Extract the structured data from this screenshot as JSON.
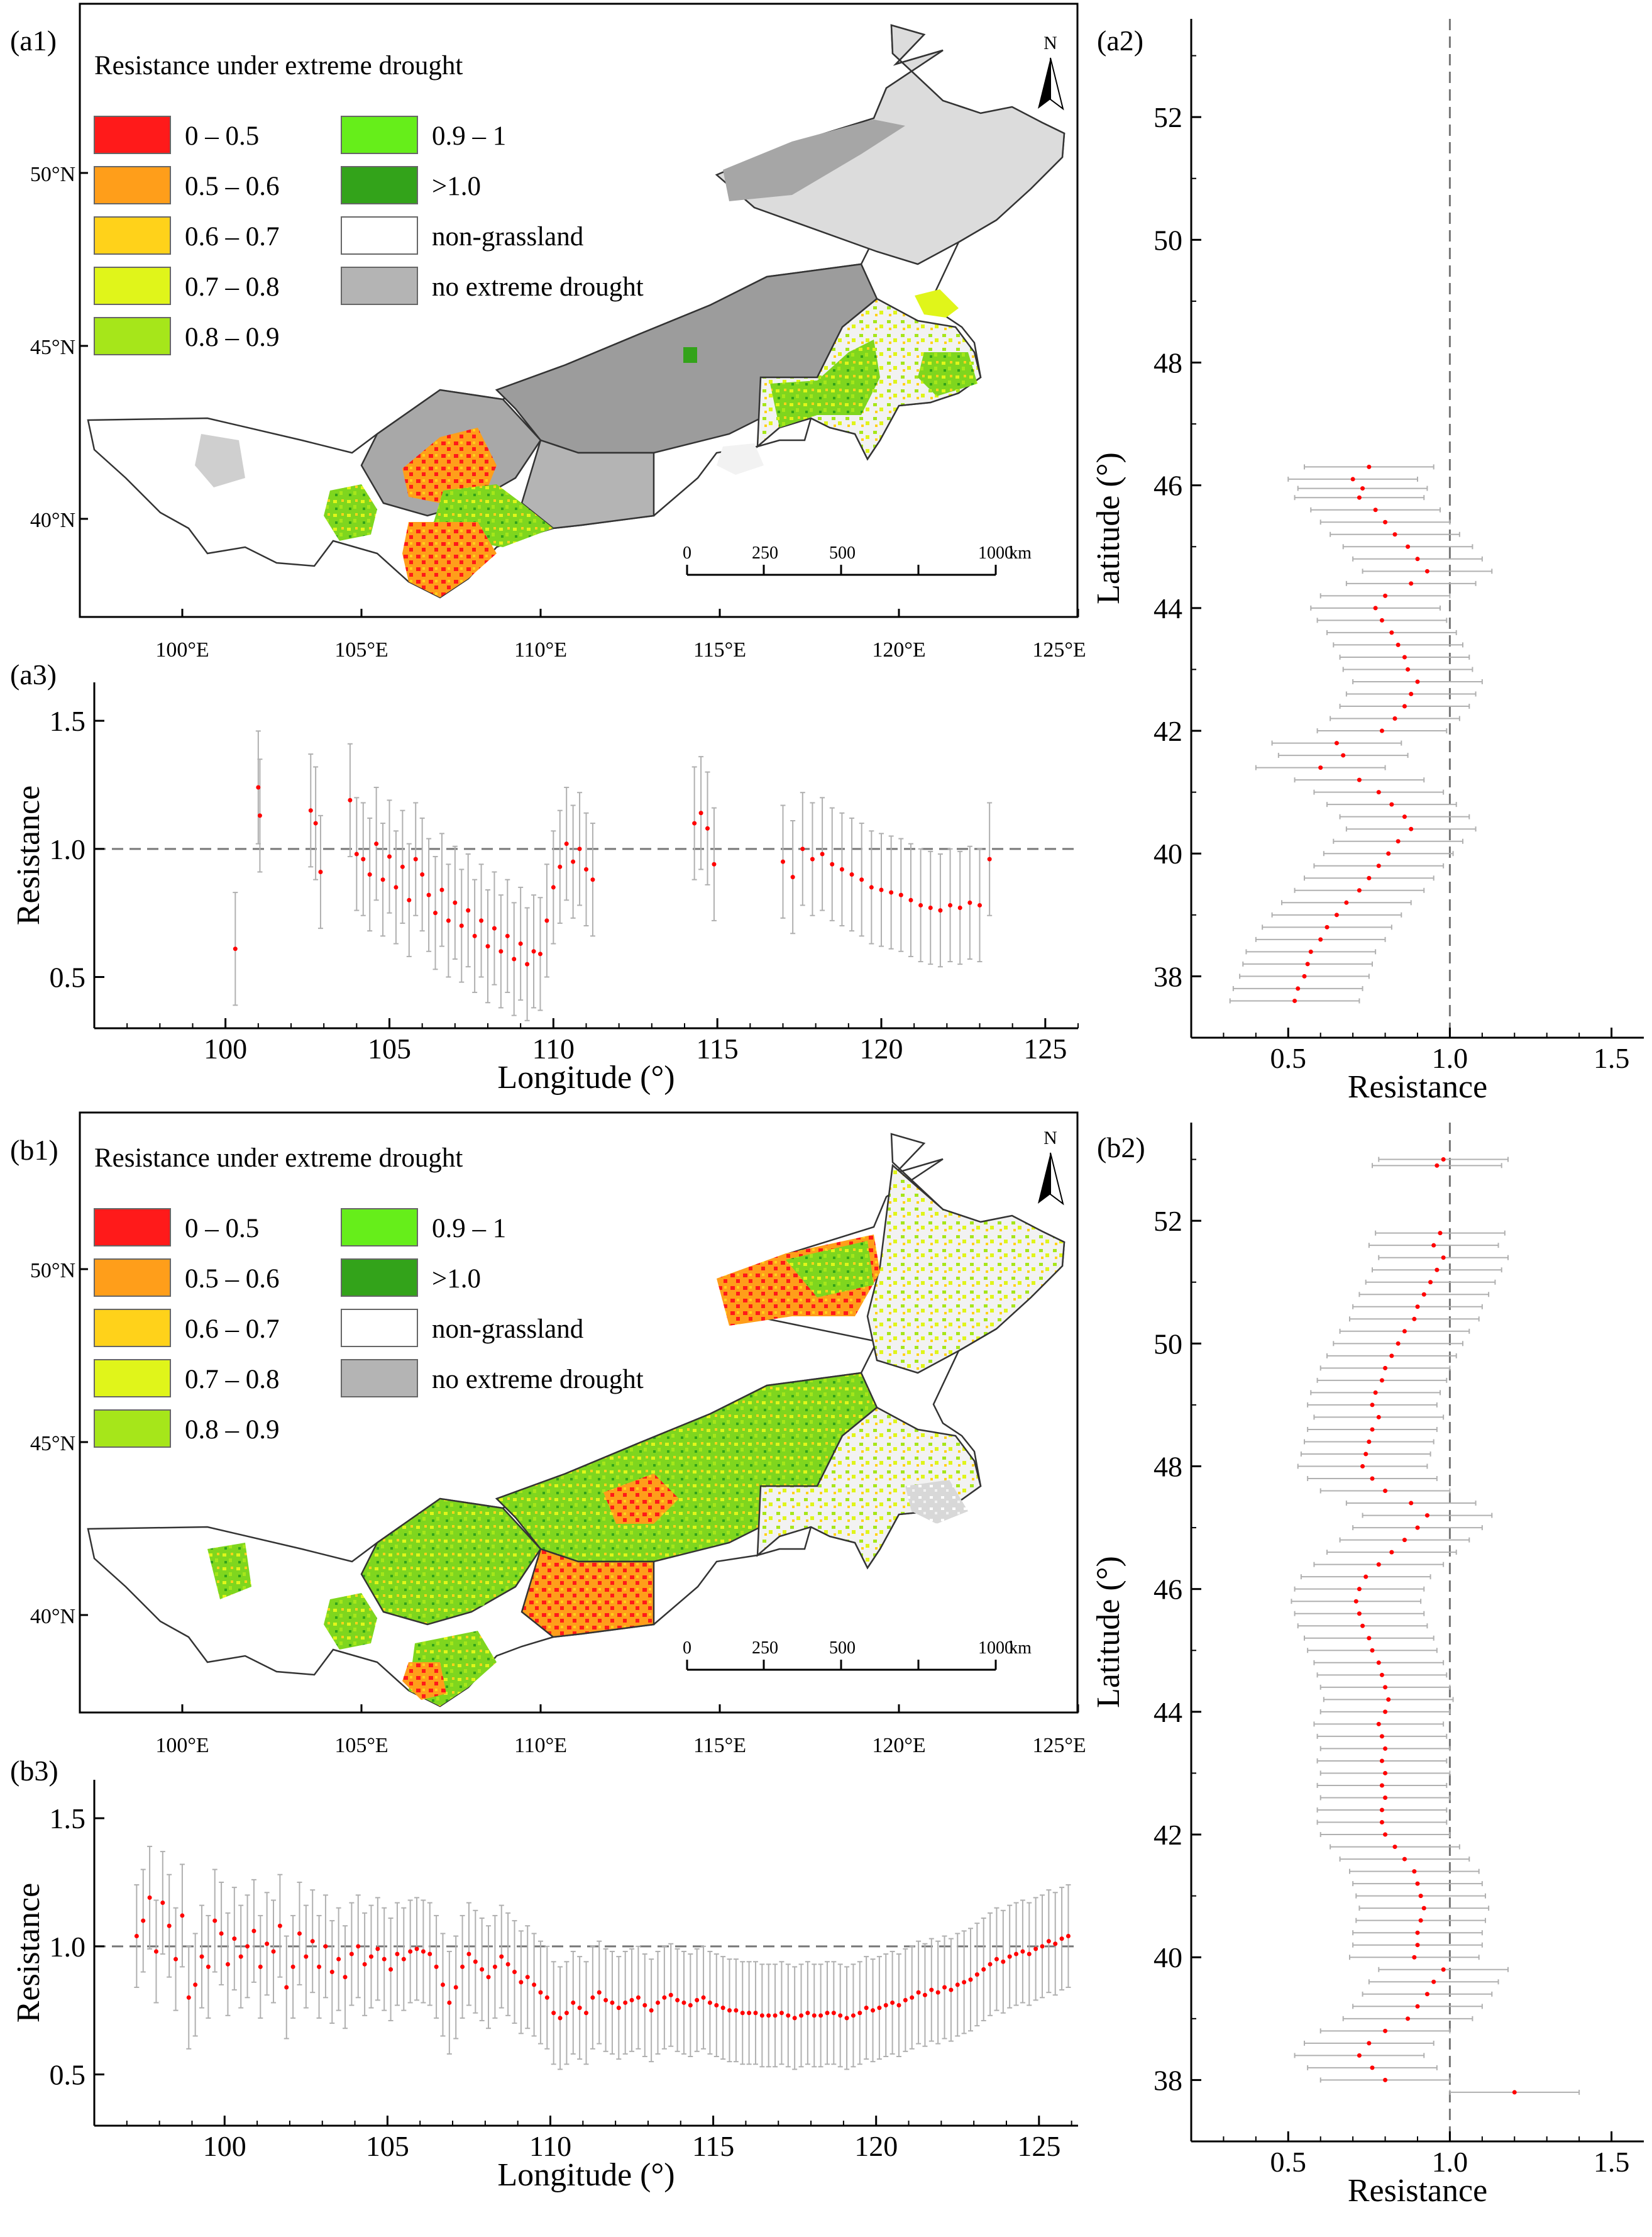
{
  "colors": {
    "c_0_05": "#ff1a1a",
    "c_05_06": "#ff9e1a",
    "c_06_07": "#ffd21a",
    "c_07_08": "#e0f51a",
    "c_08_09": "#a6e61a",
    "c_09_1": "#66ee1a",
    "c_gt1": "#33a31a",
    "nongrass": "#ffffff",
    "nodrought": "#b4b4b4",
    "point": "#ff0000",
    "errorbar": "#b0b0b0"
  },
  "legend": {
    "title": "Resistance under extreme drought",
    "items": [
      "0 – 0.5",
      "0.5 – 0.6",
      "0.6 – 0.7",
      "0.7 – 0.8",
      "0.8 – 0.9",
      "0.9 – 1",
      ">1.0",
      "non-grassland",
      "no extreme drought"
    ]
  },
  "maps": {
    "lon_ticks": [
      "100°E",
      "105°E",
      "110°E",
      "115°E",
      "120°E",
      "125°E"
    ],
    "lat_ticks": [
      "50°N",
      "45°N",
      "40°N"
    ],
    "north": "N",
    "scalebar": [
      "0",
      "250",
      "500",
      "1000"
    ],
    "scale_unit": "km"
  },
  "panel_labels": {
    "a1": "(a1)",
    "a2": "(a2)",
    "a3": "(a3)",
    "b1": "(b1)",
    "b2": "(b2)",
    "b3": "(b3)"
  },
  "chart_data": [
    {
      "id": "a3",
      "type": "scatter",
      "title": "",
      "xlabel": "Longitude (°)",
      "ylabel": "Resistance",
      "xlim": [
        96,
        126
      ],
      "ylim": [
        0.3,
        1.65
      ],
      "xticks": [
        100,
        105,
        110,
        115,
        120,
        125
      ],
      "yticks": [
        0.5,
        1.0,
        1.5
      ],
      "reference_line": 1.0,
      "error": 0.22,
      "x": [
        100.3,
        101.0,
        101.05,
        102.6,
        102.75,
        102.9,
        103.8,
        104.0,
        104.2,
        104.4,
        104.6,
        104.8,
        105.0,
        105.2,
        105.4,
        105.6,
        105.8,
        106.0,
        106.2,
        106.4,
        106.6,
        106.8,
        107.0,
        107.2,
        107.4,
        107.6,
        107.8,
        108.0,
        108.2,
        108.4,
        108.6,
        108.8,
        109.0,
        109.2,
        109.4,
        109.6,
        109.8,
        110.0,
        110.2,
        110.4,
        110.6,
        110.8,
        111.0,
        111.2,
        114.3,
        114.5,
        114.7,
        114.9,
        117.0,
        117.3,
        117.6,
        117.9,
        118.2,
        118.5,
        118.8,
        119.1,
        119.4,
        119.7,
        120.0,
        120.3,
        120.6,
        120.9,
        121.2,
        121.5,
        121.8,
        122.1,
        122.4,
        122.7,
        123.0,
        123.3
      ],
      "values": [
        0.61,
        1.24,
        1.13,
        1.15,
        1.1,
        0.91,
        1.19,
        0.98,
        0.96,
        0.9,
        1.02,
        0.88,
        0.97,
        0.85,
        0.93,
        0.8,
        0.96,
        0.9,
        0.82,
        0.75,
        0.84,
        0.72,
        0.79,
        0.7,
        0.76,
        0.66,
        0.72,
        0.62,
        0.69,
        0.6,
        0.66,
        0.57,
        0.63,
        0.55,
        0.6,
        0.59,
        0.72,
        0.85,
        0.93,
        1.02,
        0.95,
        1.0,
        0.92,
        0.88,
        1.1,
        1.14,
        1.08,
        0.94,
        0.95,
        0.89,
        1.0,
        0.96,
        0.98,
        0.94,
        0.92,
        0.9,
        0.88,
        0.85,
        0.84,
        0.83,
        0.82,
        0.8,
        0.78,
        0.77,
        0.76,
        0.78,
        0.77,
        0.79,
        0.78,
        0.96
      ]
    },
    {
      "id": "a2",
      "type": "scatter",
      "title": "",
      "xlabel": "Resistance",
      "ylabel": "Latitude (°)",
      "xlim": [
        0.2,
        1.6
      ],
      "ylim": [
        37.0,
        53.6
      ],
      "xticks": [
        0.5,
        1.0,
        1.5
      ],
      "yticks": [
        38,
        40,
        42,
        44,
        46,
        48,
        50,
        52
      ],
      "reference_line": 1.0,
      "error": 0.2,
      "y": [
        46.3,
        46.1,
        45.95,
        45.8,
        45.6,
        45.4,
        45.2,
        45.0,
        44.8,
        44.6,
        44.4,
        44.2,
        44.0,
        43.8,
        43.6,
        43.4,
        43.2,
        43.0,
        42.8,
        42.6,
        42.4,
        42.2,
        42.0,
        41.8,
        41.6,
        41.4,
        41.2,
        41.0,
        40.8,
        40.6,
        40.4,
        40.2,
        40.0,
        39.8,
        39.6,
        39.4,
        39.2,
        39.0,
        38.8,
        38.6,
        38.4,
        38.2,
        38.0,
        37.8,
        37.6
      ],
      "values": [
        0.75,
        0.7,
        0.73,
        0.72,
        0.77,
        0.8,
        0.83,
        0.87,
        0.9,
        0.93,
        0.88,
        0.8,
        0.77,
        0.79,
        0.82,
        0.84,
        0.86,
        0.87,
        0.9,
        0.88,
        0.86,
        0.83,
        0.79,
        0.65,
        0.67,
        0.6,
        0.72,
        0.78,
        0.82,
        0.86,
        0.88,
        0.84,
        0.81,
        0.78,
        0.75,
        0.72,
        0.68,
        0.65,
        0.62,
        0.6,
        0.57,
        0.56,
        0.55,
        0.53,
        0.52
      ]
    },
    {
      "id": "b3",
      "type": "scatter",
      "title": "",
      "xlabel": "Longitude (°)",
      "ylabel": "Resistance",
      "xlim": [
        96,
        126.2
      ],
      "ylim": [
        0.3,
        1.65
      ],
      "xticks": [
        100,
        105,
        110,
        115,
        120,
        125
      ],
      "yticks": [
        0.5,
        1.0,
        1.5
      ],
      "reference_line": 1.0,
      "error": 0.2,
      "x": [
        97.3,
        97.5,
        97.7,
        97.9,
        98.1,
        98.3,
        98.5,
        98.7,
        98.9,
        99.1,
        99.3,
        99.5,
        99.7,
        99.9,
        100.1,
        100.3,
        100.5,
        100.7,
        100.9,
        101.1,
        101.3,
        101.5,
        101.7,
        101.9,
        102.1,
        102.3,
        102.5,
        102.7,
        102.9,
        103.1,
        103.3,
        103.5,
        103.7,
        103.9,
        104.1,
        104.3,
        104.5,
        104.7,
        104.9,
        105.1,
        105.3,
        105.5,
        105.7,
        105.9,
        106.1,
        106.3,
        106.5,
        106.7,
        106.9,
        107.1,
        107.3,
        107.5,
        107.7,
        107.9,
        108.1,
        108.3,
        108.5,
        108.7,
        108.9,
        109.1,
        109.3,
        109.5,
        109.7,
        109.9,
        110.1,
        110.3,
        110.5,
        110.7,
        110.9,
        111.1,
        111.3,
        111.5,
        111.7,
        111.9,
        112.1,
        112.3,
        112.5,
        112.7,
        112.9,
        113.1,
        113.3,
        113.5,
        113.7,
        113.9,
        114.1,
        114.3,
        114.5,
        114.7,
        114.9,
        115.1,
        115.3,
        115.5,
        115.7,
        115.9,
        116.1,
        116.3,
        116.5,
        116.7,
        116.9,
        117.1,
        117.3,
        117.5,
        117.7,
        117.9,
        118.1,
        118.3,
        118.5,
        118.7,
        118.9,
        119.1,
        119.3,
        119.5,
        119.7,
        119.9,
        120.1,
        120.3,
        120.5,
        120.7,
        120.9,
        121.1,
        121.3,
        121.5,
        121.7,
        121.9,
        122.1,
        122.3,
        122.5,
        122.7,
        122.9,
        123.1,
        123.3,
        123.5,
        123.7,
        123.9,
        124.1,
        124.3,
        124.5,
        124.7,
        124.9,
        125.1,
        125.3,
        125.5,
        125.7,
        125.9
      ],
      "values": [
        1.04,
        1.1,
        1.19,
        0.98,
        1.17,
        1.08,
        0.95,
        1.12,
        0.8,
        0.85,
        0.96,
        0.92,
        1.1,
        1.05,
        0.93,
        1.03,
        0.96,
        1.0,
        1.06,
        0.92,
        1.01,
        0.98,
        1.08,
        0.84,
        0.92,
        1.05,
        0.96,
        1.02,
        0.92,
        1.0,
        0.9,
        0.95,
        0.88,
        0.97,
        1.0,
        0.93,
        0.96,
        0.99,
        0.95,
        0.91,
        0.97,
        0.95,
        0.98,
        0.99,
        0.98,
        0.97,
        0.92,
        0.85,
        0.78,
        0.84,
        0.92,
        0.97,
        0.94,
        0.91,
        0.88,
        0.92,
        0.96,
        0.93,
        0.9,
        0.86,
        0.88,
        0.85,
        0.82,
        0.8,
        0.74,
        0.72,
        0.74,
        0.78,
        0.76,
        0.74,
        0.8,
        0.82,
        0.79,
        0.78,
        0.76,
        0.78,
        0.79,
        0.8,
        0.77,
        0.75,
        0.78,
        0.8,
        0.81,
        0.79,
        0.78,
        0.77,
        0.79,
        0.8,
        0.78,
        0.77,
        0.76,
        0.75,
        0.75,
        0.74,
        0.74,
        0.74,
        0.73,
        0.73,
        0.73,
        0.74,
        0.73,
        0.72,
        0.73,
        0.74,
        0.73,
        0.73,
        0.74,
        0.74,
        0.73,
        0.72,
        0.73,
        0.74,
        0.76,
        0.75,
        0.76,
        0.77,
        0.78,
        0.77,
        0.79,
        0.8,
        0.82,
        0.81,
        0.83,
        0.82,
        0.84,
        0.83,
        0.85,
        0.86,
        0.87,
        0.89,
        0.91,
        0.93,
        0.95,
        0.94,
        0.96,
        0.97,
        0.98,
        0.97,
        0.99,
        1.0,
        1.02,
        1.01,
        1.03,
        1.04
      ]
    },
    {
      "id": "b2",
      "type": "scatter",
      "title": "",
      "xlabel": "Resistance",
      "ylabel": "Latitude (°)",
      "xlim": [
        0.2,
        1.6
      ],
      "ylim": [
        37.0,
        53.6
      ],
      "xticks": [
        0.5,
        1.0,
        1.5
      ],
      "yticks": [
        38,
        40,
        42,
        44,
        46,
        48,
        50,
        52
      ],
      "reference_line": 1.0,
      "error": 0.2,
      "y": [
        53.0,
        52.9,
        51.8,
        51.6,
        51.4,
        51.2,
        51.0,
        50.8,
        50.6,
        50.4,
        50.2,
        50.0,
        49.8,
        49.6,
        49.4,
        49.2,
        49.0,
        48.8,
        48.6,
        48.4,
        48.2,
        48.0,
        47.8,
        47.6,
        47.4,
        47.2,
        47.0,
        46.8,
        46.6,
        46.4,
        46.2,
        46.0,
        45.8,
        45.6,
        45.4,
        45.2,
        45.0,
        44.8,
        44.6,
        44.4,
        44.2,
        44.0,
        43.8,
        43.6,
        43.4,
        43.2,
        43.0,
        42.8,
        42.6,
        42.4,
        42.2,
        42.0,
        41.8,
        41.6,
        41.4,
        41.2,
        41.0,
        40.8,
        40.6,
        40.4,
        40.2,
        40.0,
        39.8,
        39.6,
        39.4,
        39.2,
        39.0,
        38.8,
        38.6,
        38.4,
        38.2,
        38.0,
        37.8
      ],
      "values": [
        0.98,
        0.96,
        0.97,
        0.95,
        0.98,
        0.96,
        0.94,
        0.92,
        0.9,
        0.89,
        0.86,
        0.84,
        0.82,
        0.8,
        0.79,
        0.77,
        0.76,
        0.78,
        0.76,
        0.75,
        0.74,
        0.73,
        0.76,
        0.8,
        0.88,
        0.93,
        0.9,
        0.86,
        0.82,
        0.78,
        0.74,
        0.72,
        0.71,
        0.72,
        0.73,
        0.75,
        0.76,
        0.78,
        0.79,
        0.8,
        0.81,
        0.8,
        0.78,
        0.79,
        0.8,
        0.79,
        0.8,
        0.79,
        0.8,
        0.79,
        0.79,
        0.8,
        0.83,
        0.86,
        0.89,
        0.9,
        0.91,
        0.92,
        0.91,
        0.9,
        0.9,
        0.89,
        0.98,
        0.95,
        0.93,
        0.9,
        0.87,
        0.8,
        0.75,
        0.72,
        0.76,
        0.8,
        1.2
      ]
    }
  ]
}
